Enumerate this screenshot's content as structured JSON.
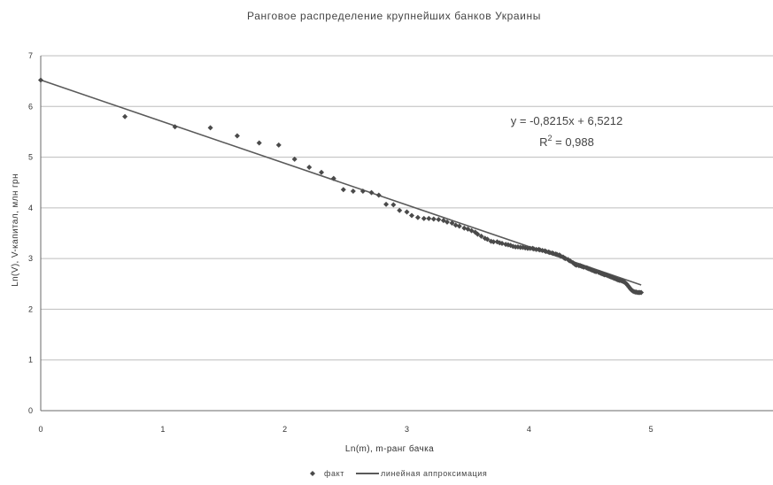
{
  "chart_data": {
    "type": "scatter",
    "title": "Ранговое распределение крупнейших банков Украины",
    "xlabel": "Ln(m), m-ранг бачка",
    "ylabel": "Ln(V), V-капитал, млн грн",
    "xlim": [
      0,
      6
    ],
    "ylim": [
      0,
      7
    ],
    "x_ticks": [
      "0",
      "1",
      "2",
      "3",
      "4",
      "5"
    ],
    "y_ticks": [
      "0",
      "1",
      "2",
      "3",
      "4",
      "5",
      "6",
      "7"
    ],
    "grid": "horizontal",
    "legend_position": "bottom",
    "series": [
      {
        "name": "факт",
        "marker": "diamond",
        "points": [
          [
            0.0,
            6.52
          ],
          [
            0.69,
            5.8
          ],
          [
            1.1,
            5.6
          ],
          [
            1.39,
            5.58
          ],
          [
            1.61,
            5.42
          ],
          [
            1.79,
            5.28
          ],
          [
            1.95,
            5.24
          ],
          [
            2.08,
            4.96
          ],
          [
            2.2,
            4.8
          ],
          [
            2.3,
            4.7
          ],
          [
            2.4,
            4.58
          ],
          [
            2.48,
            4.36
          ],
          [
            2.56,
            4.33
          ],
          [
            2.64,
            4.33
          ],
          [
            2.71,
            4.3
          ],
          [
            2.77,
            4.25
          ],
          [
            2.83,
            4.07
          ],
          [
            2.89,
            4.06
          ],
          [
            2.94,
            3.95
          ],
          [
            3.0,
            3.92
          ],
          [
            3.04,
            3.85
          ],
          [
            3.09,
            3.81
          ],
          [
            3.14,
            3.79
          ],
          [
            3.18,
            3.79
          ],
          [
            3.22,
            3.78
          ],
          [
            3.26,
            3.77
          ],
          [
            3.3,
            3.75
          ],
          [
            3.33,
            3.72
          ],
          [
            3.37,
            3.7
          ],
          [
            3.4,
            3.66
          ],
          [
            3.43,
            3.64
          ],
          [
            3.47,
            3.6
          ],
          [
            3.5,
            3.58
          ],
          [
            3.53,
            3.55
          ],
          [
            3.56,
            3.52
          ],
          [
            3.58,
            3.48
          ],
          [
            3.61,
            3.44
          ],
          [
            3.64,
            3.4
          ],
          [
            3.66,
            3.38
          ],
          [
            3.69,
            3.34
          ],
          [
            3.71,
            3.33
          ],
          [
            3.74,
            3.33
          ],
          [
            3.76,
            3.31
          ],
          [
            3.78,
            3.3
          ],
          [
            3.81,
            3.28
          ],
          [
            3.83,
            3.27
          ],
          [
            3.85,
            3.26
          ],
          [
            3.87,
            3.24
          ],
          [
            3.89,
            3.23
          ],
          [
            3.91,
            3.23
          ],
          [
            3.93,
            3.22
          ],
          [
            3.95,
            3.22
          ],
          [
            3.97,
            3.21
          ],
          [
            3.99,
            3.2
          ],
          [
            4.01,
            3.2
          ],
          [
            4.03,
            3.2
          ],
          [
            4.04,
            3.19
          ],
          [
            4.06,
            3.18
          ],
          [
            4.08,
            3.18
          ],
          [
            4.09,
            3.17
          ],
          [
            4.11,
            3.16
          ],
          [
            4.13,
            3.15
          ],
          [
            4.14,
            3.14
          ],
          [
            4.16,
            3.13
          ],
          [
            4.17,
            3.12
          ],
          [
            4.19,
            3.11
          ],
          [
            4.2,
            3.1
          ],
          [
            4.22,
            3.09
          ],
          [
            4.23,
            3.08
          ],
          [
            4.25,
            3.07
          ],
          [
            4.26,
            3.05
          ],
          [
            4.28,
            3.03
          ],
          [
            4.29,
            3.01
          ],
          [
            4.3,
            3.0
          ],
          [
            4.32,
            2.98
          ],
          [
            4.33,
            2.96
          ],
          [
            4.34,
            2.95
          ],
          [
            4.36,
            2.92
          ],
          [
            4.37,
            2.9
          ],
          [
            4.38,
            2.88
          ],
          [
            4.39,
            2.87
          ],
          [
            4.41,
            2.86
          ],
          [
            4.42,
            2.86
          ],
          [
            4.43,
            2.85
          ],
          [
            4.44,
            2.84
          ],
          [
            4.45,
            2.83
          ],
          [
            4.47,
            2.82
          ],
          [
            4.48,
            2.81
          ],
          [
            4.49,
            2.8
          ],
          [
            4.5,
            2.79
          ],
          [
            4.51,
            2.78
          ],
          [
            4.52,
            2.77
          ],
          [
            4.53,
            2.76
          ],
          [
            4.54,
            2.75
          ],
          [
            4.55,
            2.74
          ],
          [
            4.57,
            2.73
          ],
          [
            4.58,
            2.72
          ],
          [
            4.59,
            2.71
          ],
          [
            4.6,
            2.7
          ],
          [
            4.61,
            2.69
          ],
          [
            4.62,
            2.68
          ],
          [
            4.63,
            2.68
          ],
          [
            4.64,
            2.67
          ],
          [
            4.65,
            2.66
          ],
          [
            4.66,
            2.65
          ],
          [
            4.67,
            2.64
          ],
          [
            4.68,
            2.63
          ],
          [
            4.69,
            2.62
          ],
          [
            4.7,
            2.61
          ],
          [
            4.71,
            2.6
          ],
          [
            4.72,
            2.59
          ],
          [
            4.73,
            2.58
          ],
          [
            4.74,
            2.57
          ],
          [
            4.75,
            2.57
          ],
          [
            4.76,
            2.56
          ],
          [
            4.77,
            2.55
          ],
          [
            4.78,
            2.54
          ],
          [
            4.79,
            2.52
          ],
          [
            4.8,
            2.5
          ],
          [
            4.81,
            2.47
          ],
          [
            4.82,
            2.44
          ],
          [
            4.83,
            2.41
          ],
          [
            4.84,
            2.38
          ],
          [
            4.85,
            2.36
          ],
          [
            4.86,
            2.35
          ],
          [
            4.87,
            2.34
          ],
          [
            4.88,
            2.34
          ],
          [
            4.89,
            2.33
          ],
          [
            4.9,
            2.33
          ],
          [
            4.91,
            2.33
          ],
          [
            4.92,
            2.33
          ]
        ]
      },
      {
        "name": "линейная аппроксимация",
        "type": "line",
        "slope": -0.8215,
        "intercept": 6.5212,
        "x_range": [
          0,
          4.92
        ]
      }
    ],
    "annotations": [
      {
        "text": "y = -0,8215x + 6,5212"
      },
      {
        "text_prefix": "R",
        "superscript": "2",
        "text_suffix": " = 0,988"
      }
    ],
    "colors": {
      "markers": "#4a4a4a",
      "line": "#5a5a5a",
      "grid": "#bdbdbd",
      "axis": "#6a6a6a"
    }
  }
}
